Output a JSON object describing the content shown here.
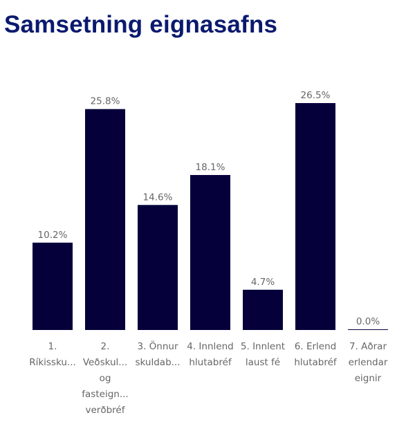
{
  "chart_data": {
    "type": "bar",
    "title": "Samsetning eignasafns",
    "categories": [
      [
        "1.",
        "Ríkissku..."
      ],
      [
        "2.",
        "Veðskul...",
        "og",
        "fasteign...",
        "verðbréf"
      ],
      [
        "3. Önnur",
        "skuldab..."
      ],
      [
        "4. Innlend",
        "hlutabréf"
      ],
      [
        "5. Innlent",
        "laust fé"
      ],
      [
        "6. Erlend",
        "hlutabréf"
      ],
      [
        "7. Aðrar",
        "erlendar",
        "eignir"
      ]
    ],
    "values": [
      10.2,
      25.8,
      14.6,
      18.1,
      4.7,
      26.5,
      0.0
    ],
    "data_labels": [
      "10.2%",
      "25.8%",
      "14.6%",
      "18.1%",
      "4.7%",
      "26.5%",
      "0.0%"
    ],
    "ylim": [
      0,
      26.5
    ],
    "grid": false,
    "bar_color": "#05003a",
    "title_color": "#0b1a6e"
  }
}
